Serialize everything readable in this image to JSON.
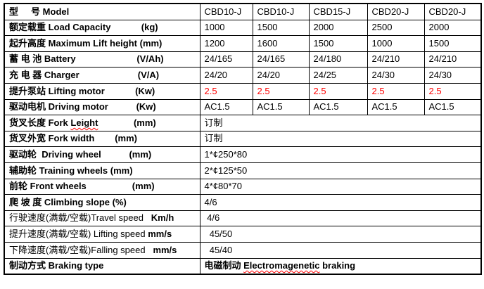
{
  "document": {
    "title": "CBD series pallet stacker specification table",
    "colors": {
      "red_value": "#ff0000",
      "spellcheck_underline": "#ff0000",
      "border": "#000000",
      "text": "#000000",
      "background": "#ffffff"
    },
    "table": {
      "column_count": 6,
      "rows": [
        {
          "name": "model",
          "label": [
            {
              "text": "型     号 Model",
              "bold": true
            }
          ],
          "values": [
            "CBD10-J",
            "CBD10-J",
            "CBD15-J",
            "CBD20-J",
            "CBD20-J"
          ]
        },
        {
          "name": "load-capacity",
          "label": [
            {
              "text": "额定载重 Load Capacity            (kg)",
              "bold": true
            }
          ],
          "values": [
            "1000",
            "1500",
            "2000",
            "2500",
            "2000"
          ]
        },
        {
          "name": "max-lift-height",
          "label": [
            {
              "text": "起升高度 Maximum Lift height (mm)",
              "bold": true
            }
          ],
          "values": [
            "1200",
            "1600",
            "1500",
            "1000",
            "1500"
          ]
        },
        {
          "name": "battery",
          "label": [
            {
              "text": "蓄 电 池 Battery                        (V/Ah)",
              "bold": true
            }
          ],
          "values": [
            "24/165",
            "24/165",
            "24/180",
            "24/210",
            "24/210"
          ]
        },
        {
          "name": "charger",
          "label": [
            {
              "text": "充 电 器 Charger                       (V/A)",
              "bold": true
            }
          ],
          "values": [
            "24/20",
            "24/20",
            "24/25",
            "24/30",
            "24/30"
          ]
        },
        {
          "name": "lifting-motor",
          "label": [
            {
              "text": "提升泵站 Lifting motor            (Kw)",
              "bold": true
            }
          ],
          "values": [
            "2.5",
            "2.5",
            "2.5",
            "2.5",
            "2.5"
          ],
          "values_red": true
        },
        {
          "name": "driving-motor",
          "label": [
            {
              "text": "驱动电机 Driving motor           (Kw)",
              "bold": true
            }
          ],
          "values": [
            "AC1.5",
            "AC1.5",
            "AC1.5",
            "AC1.5",
            "AC1.5"
          ]
        },
        {
          "name": "fork-length",
          "label": [
            {
              "text": "货叉长度 Fork ",
              "bold": true
            },
            {
              "text": "Leight",
              "bold": true,
              "misspelled": true
            },
            {
              "text": "              (mm)",
              "bold": true
            }
          ],
          "span_value": [
            {
              "text": "订制"
            }
          ]
        },
        {
          "name": "fork-width",
          "label": [
            {
              "text": "货叉外宽 Fork width        (mm)",
              "bold": true
            }
          ],
          "span_value": [
            {
              "text": "订制"
            }
          ]
        },
        {
          "name": "driving-wheel",
          "label": [
            {
              "text": "驱动轮  Driving wheel           (mm)",
              "bold": true
            }
          ],
          "span_value": [
            {
              "text": "1*¢250*80"
            }
          ]
        },
        {
          "name": "training-wheels",
          "label": [
            {
              "text": "辅助轮 Training wheels (mm)",
              "bold": true
            }
          ],
          "span_value": [
            {
              "text": "2*¢125*50"
            }
          ]
        },
        {
          "name": "front-wheels",
          "label": [
            {
              "text": "前轮 Front wheels                  (mm)",
              "bold": true
            }
          ],
          "span_value": [
            {
              "text": "4*¢80*70"
            }
          ]
        },
        {
          "name": "climbing-slope",
          "label": [
            {
              "text": "爬 坡 度 Climbing slope (%)",
              "bold": true
            }
          ],
          "span_value": [
            {
              "text": "4/6"
            }
          ]
        },
        {
          "name": "travel-speed",
          "label": [
            {
              "text": "行驶速度(满载/空载)Travel speed",
              "bold": false
            },
            {
              "text": "   Km/h",
              "bold": true
            }
          ],
          "span_value": [
            {
              "text": " 4/6"
            }
          ]
        },
        {
          "name": "lifting-speed",
          "label": [
            {
              "text": "提升速度(满载/空载) Lifting speed ",
              "bold": false
            },
            {
              "text": "mm/s",
              "bold": true
            }
          ],
          "span_value": [
            {
              "text": "  45/50"
            }
          ]
        },
        {
          "name": "falling-speed",
          "label": [
            {
              "text": "下降速度(满载/空载)Falling speed ",
              "bold": false
            },
            {
              "text": "  mm/s",
              "bold": true
            }
          ],
          "span_value": [
            {
              "text": "  45/40"
            }
          ]
        },
        {
          "name": "braking-type",
          "label": [
            {
              "text": "制动方式 Braking type",
              "bold": true
            }
          ],
          "span_value": [
            {
              "text": "电磁制动 ",
              "bold": true
            },
            {
              "text": "Electromagenetic",
              "bold": true,
              "misspelled": true
            },
            {
              "text": " braking",
              "bold": true
            }
          ]
        }
      ]
    }
  }
}
